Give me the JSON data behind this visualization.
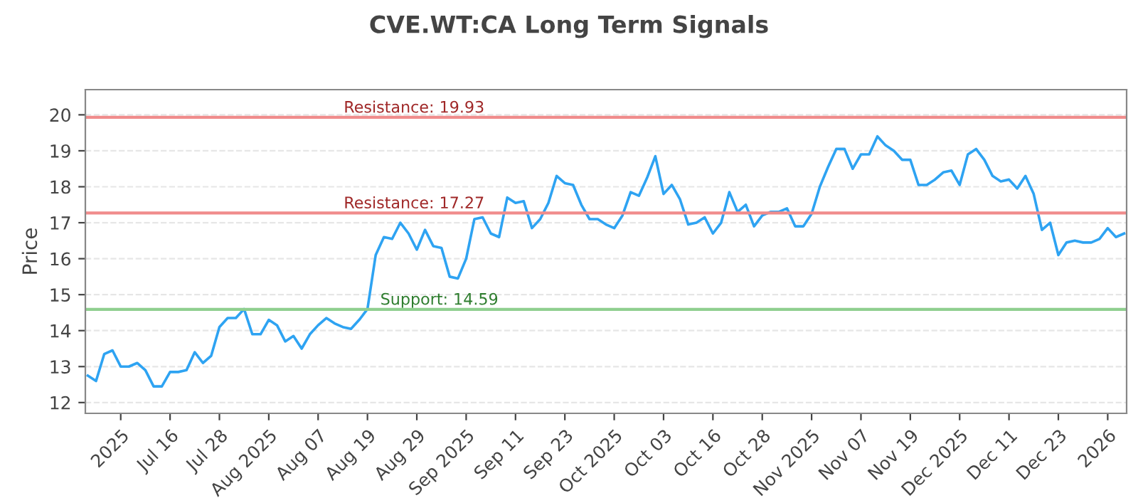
{
  "chart_data": {
    "type": "line",
    "title": "CVE.WT:CA Long Term Signals",
    "ylabel": "Price",
    "categories": [
      null,
      null,
      null,
      null,
      "2025",
      null,
      null,
      null,
      null,
      null,
      "Jul 16",
      null,
      null,
      null,
      null,
      null,
      "Jul 28",
      null,
      null,
      null,
      null,
      null,
      "Aug 2025",
      null,
      null,
      null,
      null,
      null,
      "Aug 07",
      null,
      null,
      null,
      null,
      null,
      "Aug 19",
      null,
      null,
      null,
      null,
      null,
      "Aug 29",
      null,
      null,
      null,
      null,
      null,
      "Sep 2025",
      null,
      null,
      null,
      null,
      null,
      "Sep 11",
      null,
      null,
      null,
      null,
      null,
      "Sep 23",
      null,
      null,
      null,
      null,
      null,
      "Oct 2025",
      null,
      null,
      null,
      null,
      null,
      "Oct 03",
      null,
      null,
      null,
      null,
      null,
      "Oct 16",
      null,
      null,
      null,
      null,
      null,
      "Oct 28",
      null,
      null,
      null,
      null,
      null,
      "Nov 2025",
      null,
      null,
      null,
      null,
      null,
      "Nov 07",
      null,
      null,
      null,
      null,
      null,
      "Nov 19",
      null,
      null,
      null,
      null,
      null,
      "Dec 2025",
      null,
      null,
      null,
      null,
      null,
      "Dec 11",
      null,
      null,
      null,
      null,
      null,
      "Dec 23",
      null,
      null,
      null,
      null,
      null,
      "2026",
      null,
      null
    ],
    "series": [
      {
        "color": "#2ea3f2",
        "values": [
          12.75,
          12.6,
          13.35,
          13.45,
          13.0,
          13.0,
          13.1,
          12.9,
          12.45,
          12.45,
          12.85,
          12.85,
          12.9,
          13.4,
          13.1,
          13.3,
          14.1,
          14.35,
          14.35,
          14.6,
          13.9,
          13.9,
          14.3,
          14.15,
          13.7,
          13.85,
          13.5,
          13.9,
          14.15,
          14.35,
          14.2,
          14.1,
          14.05,
          14.3,
          14.6,
          16.1,
          16.6,
          16.55,
          17.0,
          16.7,
          16.25,
          16.8,
          16.35,
          16.3,
          15.5,
          15.45,
          16.0,
          17.1,
          17.15,
          16.7,
          16.6,
          17.7,
          17.55,
          17.6,
          16.85,
          17.1,
          17.55,
          18.3,
          18.1,
          18.05,
          17.5,
          17.1,
          17.1,
          16.95,
          16.85,
          17.2,
          17.85,
          17.75,
          18.25,
          18.85,
          17.8,
          18.05,
          17.65,
          16.95,
          17.0,
          17.15,
          16.7,
          17.0,
          17.85,
          17.3,
          17.5,
          16.9,
          17.2,
          17.3,
          17.3,
          17.4,
          16.9,
          16.9,
          17.25,
          18.0,
          18.55,
          19.05,
          19.05,
          18.5,
          18.9,
          18.9,
          19.4,
          19.15,
          19.0,
          18.75,
          18.75,
          18.05,
          18.05,
          18.2,
          18.4,
          18.45,
          18.05,
          18.9,
          19.05,
          18.75,
          18.3,
          18.15,
          18.2,
          17.95,
          18.3,
          17.8,
          16.8,
          17.0,
          16.1,
          16.45,
          16.5,
          16.45,
          16.45,
          16.55,
          16.85,
          16.6,
          16.7
        ]
      }
    ],
    "ylim": [
      11.7,
      20.7
    ],
    "yticks": [
      12,
      13,
      14,
      15,
      16,
      17,
      18,
      19,
      20
    ],
    "grid": "y",
    "ref_lines": [
      {
        "axis": "y",
        "value": 19.93,
        "label": "Resistance: 19.93",
        "color": "#f08c8c"
      },
      {
        "axis": "y",
        "value": 17.27,
        "label": "Resistance: 17.27",
        "color": "#f08c8c"
      },
      {
        "axis": "y",
        "value": 14.59,
        "label": "Support: 14.59",
        "color": "#8fcf8f"
      }
    ]
  }
}
